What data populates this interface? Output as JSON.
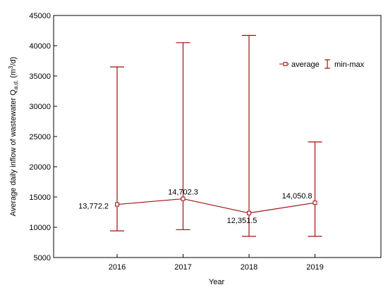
{
  "chart_data": {
    "type": "line",
    "x": [
      "2016",
      "2017",
      "2018",
      "2019"
    ],
    "series": [
      {
        "name": "average",
        "values": [
          13772.2,
          14702.3,
          12351.5,
          14050.8
        ],
        "labels": [
          "13,772.2",
          "14,702.3",
          "12,351.5",
          "14,050.8"
        ],
        "min": [
          9400,
          9600,
          8500,
          8500
        ],
        "max": [
          36500,
          40500,
          41700,
          24100
        ]
      }
    ],
    "errorbar_name": "min-max",
    "xlabel": "Year",
    "ylabel_main": "Average daily inflow of wastewater Q",
    "ylabel_sub": "a.d.",
    "ylabel_unit_pre": " (m",
    "ylabel_unit_sup": "3",
    "ylabel_unit_post": "/d)",
    "ylim": [
      5000,
      45000
    ],
    "yticks": [
      5000,
      10000,
      15000,
      20000,
      25000,
      30000,
      35000,
      40000,
      45000
    ],
    "grid": false,
    "legend_position": "top-right",
    "color": "#a01010"
  }
}
